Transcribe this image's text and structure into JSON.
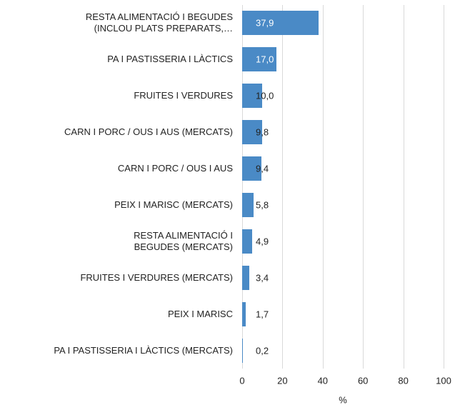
{
  "chart_data": {
    "type": "bar",
    "orientation": "horizontal",
    "categories": [
      "RESTA ALIMENTACIÓ I BEGUDES\n(INCLOU PLATS PREPARATS,…",
      "PA I PASTISSERIA I LÀCTICS",
      "FRUITES I VERDURES",
      "CARN I PORC / OUS I AUS (MERCATS)",
      "CARN I PORC / OUS I AUS",
      "PEIX I MARISC (MERCATS)",
      "RESTA ALIMENTACIÓ I\nBEGUDES (MERCATS)",
      "FRUITES I VERDURES (MERCATS)",
      "PEIX I MARISC",
      "PA I PASTISSERIA I LÀCTICS (MERCATS)"
    ],
    "values": [
      37.9,
      17.0,
      10.0,
      9.8,
      9.4,
      5.8,
      4.9,
      3.4,
      1.7,
      0.2
    ],
    "value_labels": [
      "37,9",
      "17,0",
      "10,0",
      "9,8",
      "9,4",
      "5,8",
      "4,9",
      "3,4",
      "1,7",
      "0,2"
    ],
    "color": "#4a8ac6",
    "xlabel": "%",
    "xlim": [
      0,
      100
    ],
    "xticks": [
      0,
      20,
      40,
      60,
      80,
      100
    ],
    "grid": true
  }
}
